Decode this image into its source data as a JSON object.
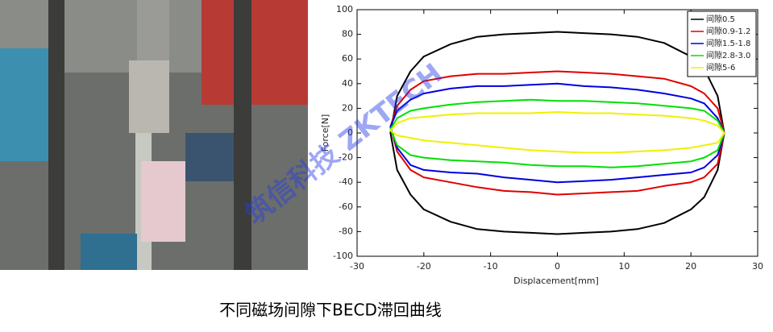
{
  "chart_data": {
    "type": "line",
    "xlabel": "Displacement[mm]",
    "ylabel": "Force[N]",
    "caption": "不同磁场间隙下BECD滞回曲线",
    "watermark": "筑信科技 ZKTECH",
    "xlim": [
      -30,
      30
    ],
    "xticks": [
      -30,
      -20,
      -10,
      0,
      10,
      20,
      30
    ],
    "ylim": [
      -100,
      100
    ],
    "yticks": [
      -100,
      -80,
      -60,
      -40,
      -20,
      0,
      20,
      40,
      60,
      80,
      100
    ],
    "legend": "upper right",
    "x": [
      -25,
      -24,
      -22,
      -20,
      -16,
      -12,
      -8,
      -4,
      0,
      4,
      8,
      12,
      16,
      20,
      22,
      24,
      25,
      24,
      22,
      20,
      16,
      12,
      8,
      4,
      0,
      -4,
      -8,
      -12,
      -16,
      -20,
      -22,
      -24
    ],
    "series": [
      {
        "name": "间隙0.5",
        "color": "#000000",
        "values": [
          0,
          30,
          50,
          62,
          72,
          78,
          80,
          81,
          82,
          81,
          80,
          78,
          73,
          62,
          52,
          30,
          0,
          -30,
          -52,
          -62,
          -73,
          -78,
          -80,
          -81,
          -82,
          -81,
          -80,
          -78,
          -72,
          -62,
          -50,
          -30
        ]
      },
      {
        "name": "间隙0.9-1.2",
        "color": "#e00000",
        "values": [
          5,
          22,
          35,
          42,
          46,
          48,
          48,
          49,
          50,
          49,
          48,
          46,
          44,
          38,
          32,
          20,
          0,
          -25,
          -36,
          -40,
          -43,
          -47,
          -48,
          -49,
          -50,
          -48,
          -47,
          -44,
          -40,
          -36,
          -30,
          -15
        ]
      },
      {
        "name": "间隙1.5-1.8",
        "color": "#0000e0",
        "values": [
          5,
          18,
          27,
          32,
          36,
          38,
          38,
          39,
          40,
          38,
          37,
          35,
          32,
          28,
          24,
          12,
          0,
          -18,
          -28,
          -32,
          -34,
          -36,
          -38,
          -39,
          -40,
          -38,
          -36,
          -33,
          -32,
          -30,
          -26,
          -12
        ]
      },
      {
        "name": "间隙2.8-3.0",
        "color": "#00e000",
        "values": [
          3,
          12,
          18,
          20,
          23,
          25,
          26,
          27,
          26,
          26,
          25,
          24,
          22,
          20,
          18,
          10,
          0,
          -14,
          -20,
          -23,
          -25,
          -27,
          -28,
          -27,
          -27,
          -26,
          -24,
          -23,
          -22,
          -20,
          -18,
          -10
        ]
      },
      {
        "name": "间隙5-6",
        "color": "#f0f000",
        "values": [
          2,
          8,
          12,
          13,
          15,
          16,
          16,
          16,
          17,
          16,
          16,
          15,
          14,
          12,
          10,
          6,
          0,
          -8,
          -10,
          -12,
          -14,
          -15,
          -16,
          -16,
          -15,
          -14,
          -12,
          -10,
          -8,
          -6,
          -4,
          -2
        ]
      }
    ]
  }
}
